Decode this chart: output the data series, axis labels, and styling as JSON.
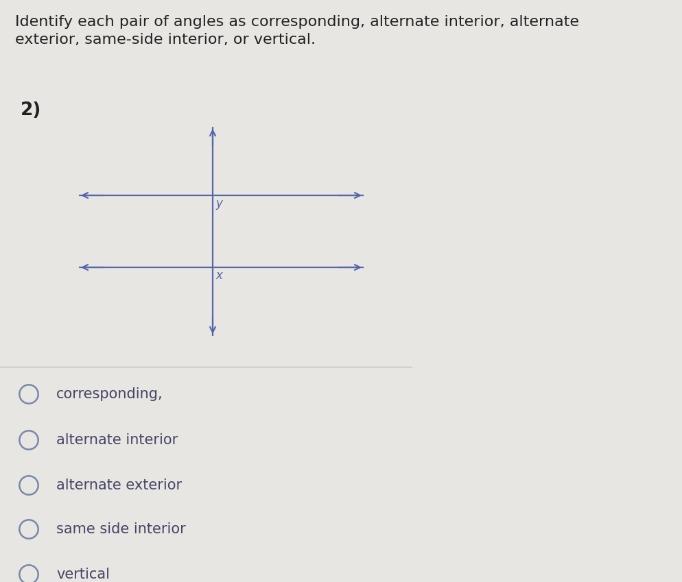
{
  "bg_color": "#e8e6e2",
  "title_text": "Identify each pair of angles as corresponding, alternate interior, alternate\nexterior, same-side interior, or vertical.",
  "title_fontsize": 16,
  "title_color": "#222222",
  "problem_number": "2)",
  "problem_number_fontsize": 19,
  "diagram": {
    "line_color": "#5566aa",
    "line_width": 1.6,
    "label_y": "y",
    "label_x": "x",
    "label_fontsize": 12,
    "label_color": "#5566aa"
  },
  "options": [
    "corresponding,",
    "alternate interior",
    "alternate exterior",
    "same side interior",
    "vertical"
  ],
  "option_fontsize": 15,
  "option_color": "#444466",
  "circle_color": "#7788aa",
  "separator_color": "#bbbbbb"
}
